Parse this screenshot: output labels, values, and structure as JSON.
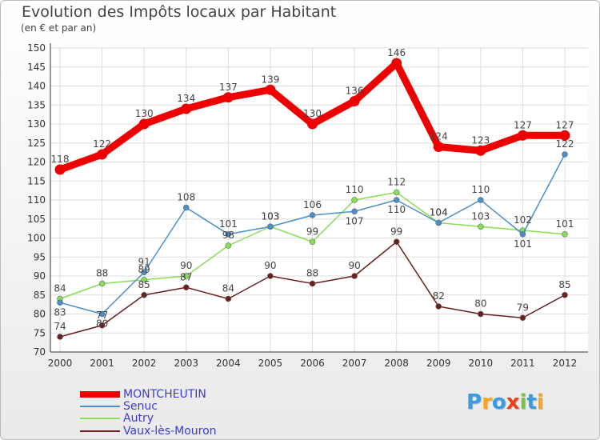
{
  "chart_data": {
    "type": "line",
    "title": "Evolution des Impôts locaux par Habitant",
    "subtitle": "(en € et par an)",
    "xlabel": "",
    "ylabel": "",
    "x": [
      "2000",
      "2001",
      "2002",
      "2003",
      "2004",
      "2005",
      "2006",
      "2007",
      "2008",
      "2009",
      "2010",
      "2011",
      "2012"
    ],
    "ylim": [
      70,
      150
    ],
    "yticks": [
      70,
      75,
      80,
      85,
      90,
      95,
      100,
      105,
      110,
      115,
      120,
      125,
      130,
      135,
      140,
      145,
      150
    ],
    "grid": true,
    "series": [
      {
        "name": "MONTCHEUTIN",
        "color": "#ee0000",
        "values": [
          118,
          122,
          130,
          134,
          137,
          139,
          130,
          136,
          146,
          124,
          123,
          127,
          127
        ]
      },
      {
        "name": "Senuc",
        "color": "#4a8fc9",
        "values": [
          83,
          80,
          91,
          108,
          101,
          103,
          106,
          107,
          110,
          104,
          110,
          101,
          122
        ]
      },
      {
        "name": "Autry",
        "color": "#88dd55",
        "values": [
          84,
          88,
          89,
          90,
          98,
          103,
          99,
          110,
          112,
          104,
          103,
          102,
          101
        ]
      },
      {
        "name": "Vaux-lès-Mouron",
        "color": "#6b1f1f",
        "values": [
          74,
          77,
          85,
          87,
          84,
          90,
          88,
          90,
          99,
          82,
          80,
          79,
          85
        ]
      }
    ]
  },
  "legend": {
    "items": [
      "MONTCHEUTIN",
      "Senuc",
      "Autry",
      "Vaux-lès-Mouron"
    ]
  },
  "logo": {
    "letters": [
      "P",
      "r",
      "o",
      "x",
      "i",
      "t",
      "i"
    ],
    "colors": [
      "#3a9be0",
      "#f5a623",
      "#3a9be0",
      "#e8401c",
      "#7cc242",
      "#3a9be0",
      "#f5a623"
    ]
  }
}
